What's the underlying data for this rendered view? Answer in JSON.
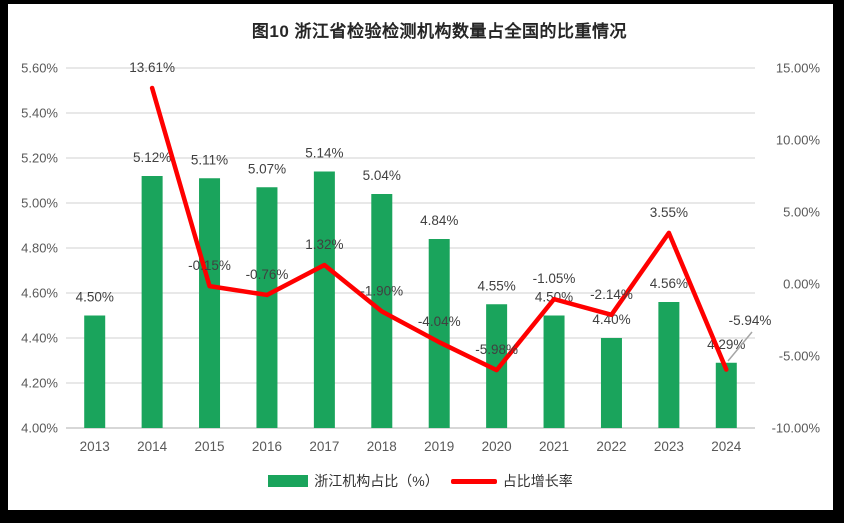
{
  "colors": {
    "frame": "#000000",
    "background": "#ffffff",
    "bar": "#1aa45c",
    "line": "#ff0000",
    "grid": "#d9d9d9",
    "axis_line": "#bfbfbf",
    "axis_text": "#595959",
    "label_text": "#404040",
    "title_text": "#262626",
    "leader_line": "#a6a6a6"
  },
  "chart_data": {
    "type": "combo-bar-line",
    "title": "图10  浙江省检验检测机构数量占全国的比重情况",
    "grid": true,
    "legend_position": "bottom",
    "categories": [
      "2013",
      "2014",
      "2015",
      "2016",
      "2017",
      "2018",
      "2019",
      "2020",
      "2021",
      "2022",
      "2023",
      "2024"
    ],
    "series": [
      {
        "name": "浙江机构占比（%）",
        "type": "bar",
        "axis": "left",
        "color": "#1aa45c",
        "values": [
          4.5,
          5.12,
          5.11,
          5.07,
          5.14,
          5.04,
          4.84,
          4.55,
          4.5,
          4.4,
          4.56,
          4.29
        ],
        "labels": [
          "4.50%",
          "5.12%",
          "5.11%",
          "5.07%",
          "5.14%",
          "5.04%",
          "4.84%",
          "4.55%",
          "4.50%",
          "4.40%",
          "4.56%",
          "4.29%"
        ]
      },
      {
        "name": "占比增长率",
        "type": "line",
        "axis": "right",
        "color": "#ff0000",
        "values": [
          null,
          13.61,
          -0.15,
          -0.76,
          1.32,
          -1.9,
          -4.04,
          -5.98,
          -1.05,
          -2.14,
          3.55,
          -5.94
        ],
        "labels": [
          null,
          "13.61%",
          "-0.15%",
          "-0.76%",
          "1.32%",
          "-1.90%",
          "-4.04%",
          "-5.98%",
          "-1.05%",
          "-2.14%",
          "3.55%",
          "-5.94%"
        ]
      }
    ],
    "left_axis": {
      "min": 4.0,
      "max": 5.6,
      "ticks": [
        {
          "v": 5.6,
          "label": "5.60%"
        },
        {
          "v": 5.4,
          "label": "5.40%"
        },
        {
          "v": 5.2,
          "label": "5.20%"
        },
        {
          "v": 5.0,
          "label": "5.00%"
        },
        {
          "v": 4.8,
          "label": "4.80%"
        },
        {
          "v": 4.6,
          "label": "4.60%"
        },
        {
          "v": 4.4,
          "label": "4.40%"
        },
        {
          "v": 4.2,
          "label": "4.20%"
        },
        {
          "v": 4.0,
          "label": "4.00%"
        }
      ]
    },
    "right_axis": {
      "min": -10,
      "max": 15,
      "ticks": [
        {
          "v": 15,
          "label": "15.00%"
        },
        {
          "v": 10,
          "label": "10.00%"
        },
        {
          "v": 5,
          "label": "5.00%"
        },
        {
          "v": 0,
          "label": "0.00%"
        },
        {
          "v": -5,
          "label": "-5.00%"
        },
        {
          "v": -10,
          "label": "-10.00%"
        }
      ]
    }
  }
}
